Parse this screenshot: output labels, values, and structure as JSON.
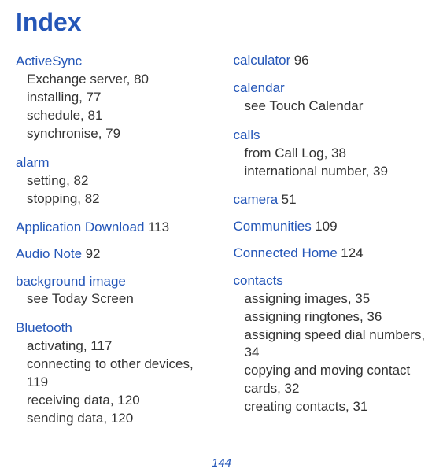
{
  "title": "Index",
  "pageNumber": "144",
  "colors": {
    "heading": "#2456b8",
    "text": "#333333",
    "background": "#ffffff"
  },
  "typography": {
    "titleSize": 32,
    "bodySize": 17,
    "pageNumSize": 15,
    "fontFamily": "Arial, Helvetica, sans-serif"
  },
  "leftColumn": [
    {
      "heading": "ActiveSync",
      "items": [
        "Exchange server, 80",
        "installing, 77",
        "schedule, 81",
        "synchronise, 79"
      ]
    },
    {
      "heading": "alarm",
      "items": [
        "setting, 82",
        "stopping, 82"
      ]
    },
    {
      "heading": "Application Download",
      "inlineRef": "113"
    },
    {
      "heading": "Audio Note",
      "inlineRef": "92"
    },
    {
      "heading": "background image",
      "items": [
        "see Today Screen"
      ]
    },
    {
      "heading": "Bluetooth",
      "items": [
        "activating, 117",
        "connecting to other devices, 119",
        "receiving data, 120",
        "sending data, 120"
      ]
    }
  ],
  "rightColumn": [
    {
      "heading": "calculator",
      "inlineRef": "96"
    },
    {
      "heading": "calendar",
      "items": [
        "see Touch Calendar"
      ]
    },
    {
      "heading": "calls",
      "items": [
        "from Call Log, 38",
        "international number, 39"
      ]
    },
    {
      "heading": "camera",
      "inlineRef": "51"
    },
    {
      "heading": "Communities",
      "inlineRef": "109"
    },
    {
      "heading": "Connected Home",
      "inlineRef": "124"
    },
    {
      "heading": "contacts",
      "items": [
        "assigning images, 35",
        "assigning ringtones, 36",
        "assigning speed dial numbers, 34",
        "copying and moving contact cards, 32",
        "creating contacts, 31"
      ]
    }
  ]
}
